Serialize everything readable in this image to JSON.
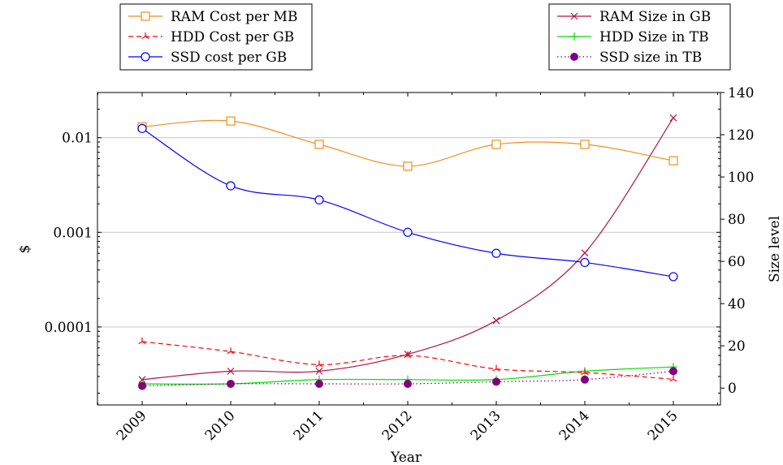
{
  "chart_data": {
    "type": "line",
    "x": [
      "2009",
      "2010",
      "2011",
      "2012",
      "2013",
      "2014",
      "2015"
    ],
    "xlabel": "Year",
    "ylabel_left": "$",
    "ylabel_right": "Size level",
    "left_axis": {
      "scale": "log",
      "range": [
        1.5e-05,
        0.03
      ],
      "ticks": [
        0.0001,
        0.001,
        0.01
      ],
      "tick_labels": [
        "0.0001",
        "0.001",
        "0.01"
      ]
    },
    "right_axis": {
      "scale": "linear",
      "range": [
        -8,
        140
      ],
      "ticks": [
        0,
        20,
        40,
        60,
        80,
        100,
        120,
        140
      ],
      "tick_labels": [
        "0",
        "20",
        "40",
        "60",
        "80",
        "100",
        "120",
        "140"
      ]
    },
    "grid": "horizontal major at left-axis ticks",
    "series_left": [
      {
        "name": "RAM Cost per MB",
        "color": "#f28e1c",
        "marker": "square",
        "line": "solid",
        "values": [
          0.013,
          0.015,
          0.0085,
          0.005,
          0.0085,
          0.0085,
          0.0057
        ]
      },
      {
        "name": "HDD Cost per GB",
        "color": "#ff0000",
        "marker": "tri-star",
        "line": "dashed",
        "values": [
          7e-05,
          5.5e-05,
          4e-05,
          5e-05,
          3.6e-05,
          3.3e-05,
          2.8e-05
        ]
      },
      {
        "name": "SSD cost per GB",
        "color": "#0000ff",
        "marker": "circle",
        "line": "solid",
        "values": [
          0.0125,
          0.0031,
          0.0022,
          0.001,
          0.0006,
          0.00048,
          0.00034
        ]
      }
    ],
    "series_right": [
      {
        "name": "RAM Size in GB",
        "color": "#b0144b",
        "marker": "cross",
        "line": "solid",
        "values": [
          4,
          8,
          8,
          16,
          32,
          64,
          128
        ]
      },
      {
        "name": "HDD Size in TB",
        "color": "#00e000",
        "marker": "plus",
        "line": "solid",
        "values": [
          2,
          2,
          4,
          4,
          4,
          8,
          10
        ]
      },
      {
        "name": "SSD size in TB",
        "color": "#800080",
        "marker": "filled-circle",
        "line": "dotted",
        "values": [
          1,
          2,
          2,
          2,
          3,
          4,
          8
        ]
      }
    ],
    "legend_left_placement": "top-left",
    "legend_right_placement": "top-right"
  }
}
